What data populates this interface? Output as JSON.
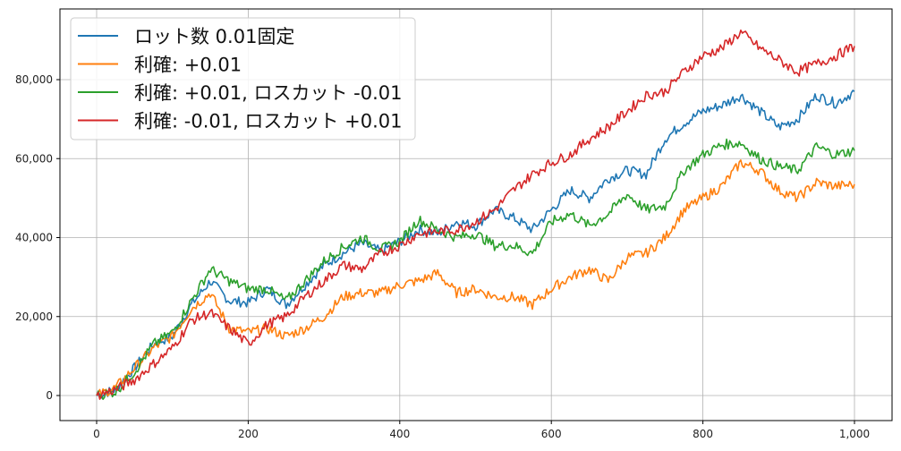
{
  "chart_data": {
    "type": "line",
    "title": "",
    "xlabel": "",
    "ylabel": "",
    "xlim": [
      -50,
      1050
    ],
    "ylim": [
      -6500,
      98000
    ],
    "grid": true,
    "legend_position": "upper left",
    "x_ticks": [
      0,
      200,
      400,
      600,
      800,
      1000
    ],
    "x_tick_labels": [
      "0",
      "200",
      "400",
      "600",
      "800",
      "1,000"
    ],
    "y_ticks": [
      0,
      20000,
      40000,
      60000,
      80000
    ],
    "y_tick_labels": [
      "0",
      "20,000",
      "40,000",
      "60,000",
      "80,000"
    ],
    "x": [
      0,
      25,
      50,
      75,
      100,
      125,
      150,
      175,
      200,
      225,
      250,
      275,
      300,
      325,
      350,
      375,
      400,
      425,
      450,
      475,
      500,
      525,
      550,
      575,
      600,
      625,
      650,
      675,
      700,
      725,
      750,
      775,
      800,
      825,
      850,
      875,
      900,
      925,
      950,
      975,
      1000
    ],
    "series": [
      {
        "name": "ロット数 0.01固定",
        "color": "#1f77b4",
        "values": [
          0,
          1500,
          7000,
          13000,
          15000,
          23000,
          29000,
          24000,
          23500,
          27000,
          23000,
          28000,
          33000,
          36000,
          38500,
          36500,
          39000,
          42000,
          41000,
          44000,
          43000,
          47000,
          45000,
          42000,
          47000,
          52000,
          50000,
          55000,
          57000,
          56000,
          65000,
          69000,
          72000,
          73500,
          76000,
          72000,
          68000,
          70000,
          76000,
          74000,
          77000
        ]
      },
      {
        "name": "利確: +0.01",
        "color": "#ff7f0e",
        "values": [
          0,
          2000,
          7000,
          12000,
          15000,
          22000,
          26000,
          17000,
          16000,
          17000,
          15000,
          17000,
          20000,
          25000,
          26000,
          26000,
          28000,
          29000,
          31000,
          26000,
          27000,
          25000,
          25000,
          23000,
          27000,
          30000,
          32000,
          29000,
          35000,
          36000,
          40000,
          47000,
          50000,
          53000,
          59000,
          57000,
          52000,
          50000,
          54000,
          53000,
          53500
        ]
      },
      {
        "name": "利確: +0.01, ロスカット -0.01",
        "color": "#2ca02c",
        "values": [
          0,
          1000,
          6000,
          13000,
          16000,
          24000,
          32000,
          29000,
          27000,
          27000,
          24000,
          29000,
          34000,
          37500,
          40000,
          37000,
          39000,
          44500,
          42000,
          40000,
          41000,
          38000,
          38000,
          36000,
          44000,
          46000,
          43000,
          46000,
          51000,
          47000,
          48000,
          57000,
          61000,
          63500,
          64000,
          60000,
          58000,
          57000,
          63000,
          61000,
          62000
        ]
      },
      {
        "name": "利確: -0.01, ロスカット +0.01",
        "color": "#d62728",
        "values": [
          0,
          1500,
          4000,
          8000,
          12000,
          19000,
          21000,
          17000,
          13000,
          18000,
          20000,
          25000,
          29000,
          33000,
          32000,
          36000,
          38000,
          41000,
          41500,
          42000,
          44000,
          47000,
          52000,
          56000,
          59000,
          61000,
          65000,
          68000,
          72000,
          76000,
          77000,
          82000,
          86000,
          88000,
          92000,
          88000,
          85000,
          82000,
          84000,
          86000,
          88500
        ]
      }
    ]
  },
  "legend": {
    "items": [
      {
        "label": "ロット数 0.01固定",
        "color": "#1f77b4"
      },
      {
        "label": "利確: +0.01",
        "color": "#ff7f0e"
      },
      {
        "label": "利確: +0.01, ロスカット -0.01",
        "color": "#2ca02c"
      },
      {
        "label": "利確: -0.01, ロスカット +0.01",
        "color": "#d62728"
      }
    ]
  },
  "style": {
    "grid_color": "#b0b0b0",
    "axis_color": "#000000",
    "legend_border": "#cccccc"
  }
}
